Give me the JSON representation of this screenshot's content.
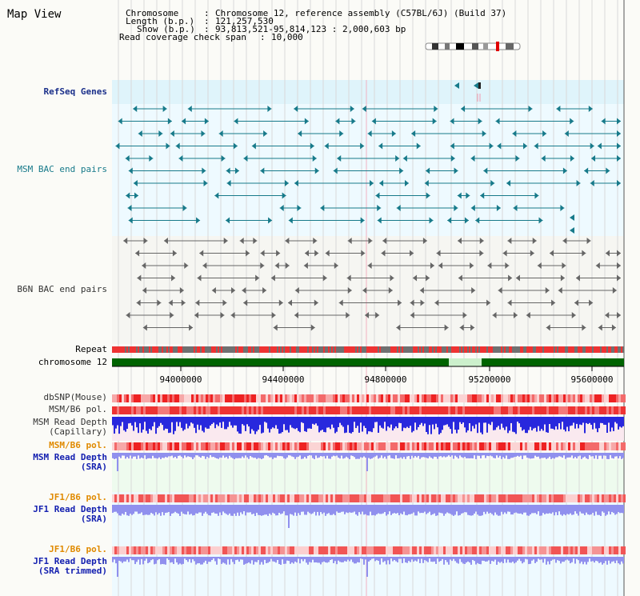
{
  "page": {
    "title": "Map View"
  },
  "header": {
    "chromosome_label": "Chromosome",
    "chromosome_value": "Chromosome 12, reference assembly (C57BL/6J) (Build 37)",
    "length_label": "Length (b.p.)",
    "length_value": "121,257,530",
    "show_label": "Show (b.p.)",
    "show_value": "93,813,521-95,814,123 : 2,000,603 bp",
    "span_label": "Read coverage check span",
    "span_value": "10,000"
  },
  "tracks": {
    "refseq": "RefSeq Genes",
    "msm_bac": "MSM BAC end pairs",
    "b6n_bac": "B6N BAC end pairs",
    "repeat": "Repeat",
    "chromosome": "chromosome 12",
    "dbsnp": "dbSNP(Mouse)",
    "msm_b6_pol_1": "MSM/B6 pol.",
    "msm_depth_cap_1": "MSM Read Depth",
    "msm_depth_cap_2": "(Capillary)",
    "msm_b6_pol_2": "MSM/B6 pol.",
    "msm_depth_sra_1": "MSM Read Depth",
    "msm_depth_sra_2": "(SRA)",
    "jf1_b6_pol_1": "JF1/B6 pol.",
    "jf1_depth_sra_1": "JF1 Read Depth",
    "jf1_depth_sra_2": "(SRA)",
    "jf1_b6_pol_2": "JF1/B6 pol.",
    "jf1_depth_trim_1": "JF1 Read Depth",
    "jf1_depth_trim_2": "(SRA trimmed)"
  },
  "axis": {
    "ticks": [
      "94000000",
      "94400000",
      "94800000",
      "95200000",
      "95600000"
    ]
  },
  "colors": {
    "refseq_bg": "#dff4fb",
    "track_bg": "#eefaff",
    "b6n_bg": "#f6f6f2",
    "gene": "#177a8a",
    "bac": "#666666",
    "chrom_green": "#006400",
    "gap_green": "#ccf0cc",
    "snp_red": "#ee3333",
    "depth_blue": "#2828dd",
    "depth_light": "#9090ee"
  }
}
